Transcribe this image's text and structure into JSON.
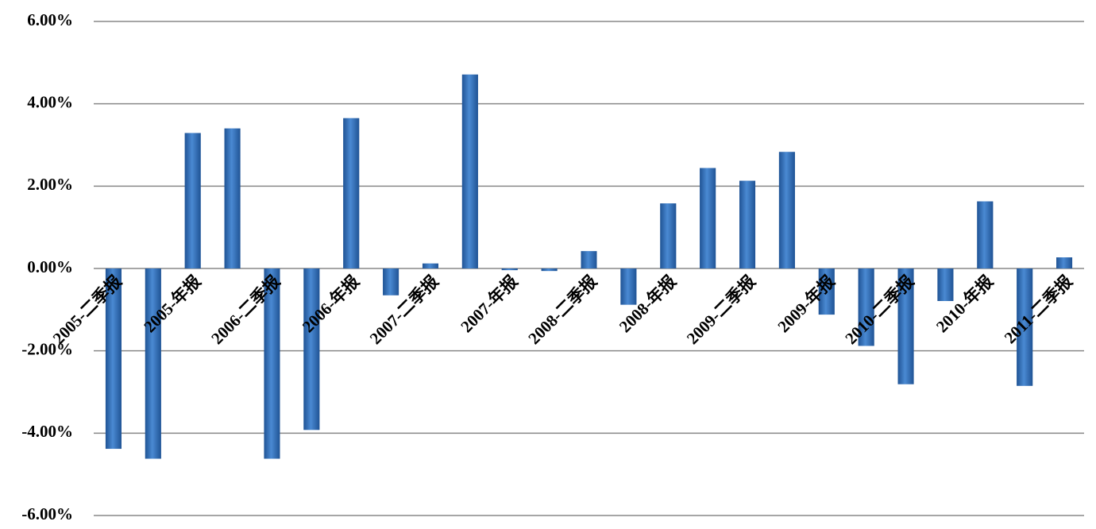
{
  "chart_data": {
    "type": "bar",
    "categories": [
      "2005-二季报",
      null,
      "2005-年报",
      null,
      "2006-二季报",
      null,
      "2006-年报",
      null,
      "2007-二季报",
      null,
      "2007-年报",
      null,
      "2008-二季报",
      null,
      "2008-年报",
      null,
      "2009-二季报",
      null,
      "2009-年报",
      null,
      "2010-二季报",
      null,
      "2010-年报",
      null,
      "2011-二季报"
    ],
    "values": [
      -4.38,
      -4.62,
      3.29,
      3.4,
      -4.62,
      -3.92,
      3.65,
      -0.65,
      0.12,
      4.71,
      -0.04,
      -0.06,
      0.42,
      -0.88,
      1.58,
      2.44,
      2.13,
      2.83,
      -1.12,
      -1.88,
      -2.81,
      -0.79,
      1.63,
      -2.85,
      0.27
    ],
    "color": "#2f6cb5",
    "ylim": [
      -6,
      6
    ],
    "yticks": [
      {
        "value": -6,
        "label": "-6.00%"
      },
      {
        "value": -4,
        "label": "-4.00%"
      },
      {
        "value": -2,
        "label": "-2.00%"
      },
      {
        "value": 0,
        "label": "0.00%"
      },
      {
        "value": 2,
        "label": "2.00%"
      },
      {
        "value": 4,
        "label": "4.00%"
      },
      {
        "value": 6,
        "label": "6.00%"
      }
    ],
    "grid": true
  }
}
